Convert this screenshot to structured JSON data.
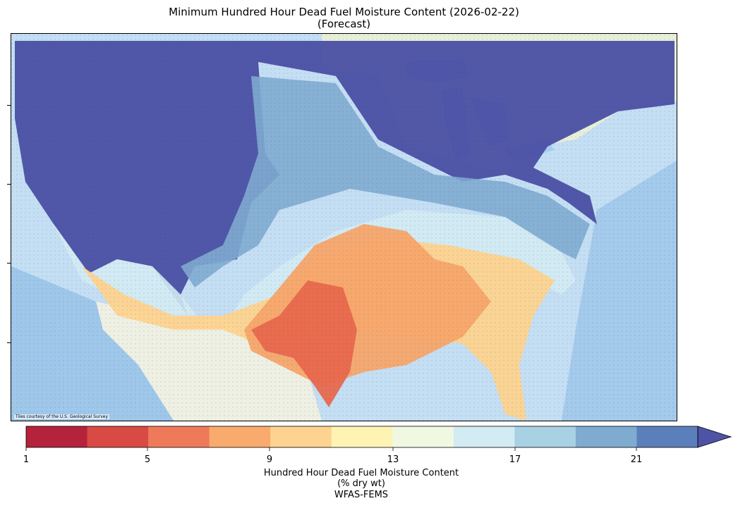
{
  "title_line1": "Minimum Hundred Hour Dead Fuel Moisture Content (2026-02-22)",
  "title_line2": "(Forecast)",
  "map_credit": "Tiles courtesy of the U.S. Geological Survey",
  "colorbar": {
    "label_line1": "Hundred Hour Dead Fuel Moisture Content",
    "label_line2": "(% dry wt)",
    "label_line3": "WFAS-FEMS",
    "tick_labels": [
      "1",
      "5",
      "9",
      "13",
      "17",
      "21"
    ],
    "colors": [
      "#b5223b",
      "#d94a44",
      "#ef7a5a",
      "#f9aa6d",
      "#fdd38f",
      "#fff3b4",
      "#f1f8e2",
      "#d3ebf3",
      "#a9d1e4",
      "#7fabd0",
      "#5b7fbb",
      "#4e53a6"
    ]
  },
  "legend_palette": {
    "water": "#bcdcf6",
    "land": "#e7efd7",
    "very_moist": "#4a4fa4",
    "moist": "#7fabd0",
    "mid": "#fdd38f",
    "dry": "#f7a56a",
    "very_dry": "#e8684e"
  }
}
